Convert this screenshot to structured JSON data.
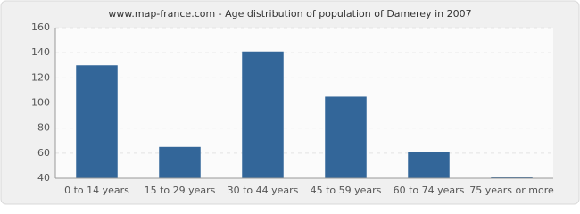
{
  "chart_data": {
    "type": "bar",
    "title": "www.map-france.com - Age distribution of population of Damerey in 2007",
    "categories": [
      "0 to 14 years",
      "15 to 29 years",
      "30 to 44 years",
      "45 to 59 years",
      "60 to 74 years",
      "75 years or more"
    ],
    "values": [
      130,
      65,
      141,
      105,
      61,
      41
    ],
    "color": "#336699",
    "ylim": [
      40,
      160
    ],
    "yticks": [
      40,
      60,
      80,
      100,
      120,
      140,
      160
    ],
    "grid": true
  }
}
